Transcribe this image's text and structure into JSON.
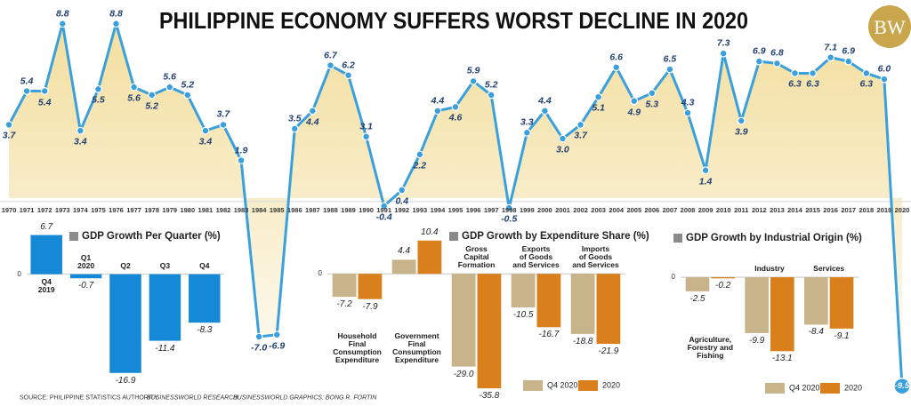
{
  "logo": "BW",
  "footer": [
    "SOURCE: PHILIPPINE STATISTICS AUTHORITY",
    "BUSINESSWORLD RESEARCH",
    "BUSINESSWORLD GRAPHICS: BONG R. FORTIN"
  ],
  "chart_data": [
    {
      "type": "line",
      "title": "PHILIPPINE ECONOMY SUFFERS WORST DECLINE IN 2020",
      "x": [
        1970,
        1971,
        1972,
        1973,
        1974,
        1975,
        1976,
        1977,
        1978,
        1979,
        1980,
        1981,
        1982,
        1983,
        1984,
        1985,
        1986,
        1987,
        1988,
        1989,
        1990,
        1991,
        1992,
        1993,
        1994,
        1995,
        1996,
        1997,
        1998,
        1999,
        2000,
        2001,
        2002,
        2003,
        2004,
        2005,
        2006,
        2007,
        2008,
        2009,
        2010,
        2011,
        2012,
        2013,
        2014,
        2015,
        2016,
        2017,
        2018,
        2019,
        2020
      ],
      "values": [
        3.7,
        5.4,
        5.4,
        8.8,
        3.4,
        5.5,
        8.8,
        5.6,
        5.2,
        5.6,
        5.2,
        3.4,
        3.7,
        1.9,
        -7.0,
        -6.9,
        3.5,
        4.4,
        6.7,
        6.2,
        3.1,
        -0.4,
        0.4,
        2.2,
        4.4,
        4.6,
        5.9,
        5.2,
        -0.5,
        3.3,
        4.4,
        3.0,
        3.7,
        5.1,
        6.6,
        4.9,
        5.3,
        6.5,
        4.3,
        1.4,
        7.3,
        3.9,
        6.9,
        6.8,
        6.3,
        6.3,
        7.1,
        6.9,
        6.3,
        6.0,
        -9.5
      ],
      "value_labels": [
        "3.7",
        "5.4",
        "5.4",
        "8.8",
        "3.4",
        "5.5",
        "8.8",
        "5.6",
        "5.2",
        "5.6",
        "5.2",
        "3.4",
        "3.7",
        "1.9",
        "-7.0",
        "-6.9",
        "3.5",
        "4.4",
        "6.7",
        "6.2",
        "3.1",
        "-0.4",
        "0.4",
        "2.2",
        "4.4",
        "4.6",
        "5.9",
        "5.2",
        "-0.5",
        "3.3",
        "4.4",
        "3.0",
        "3.7",
        "5.1",
        "6.6",
        "4.9",
        "5.3",
        "6.5",
        "4.3",
        "1.4",
        "7.3",
        "3.9",
        "6.9",
        "6.8",
        "6.3",
        "6.3",
        "7.1",
        "6.9",
        "6.3",
        "6.0",
        "-9.5"
      ],
      "color": "#3aa0dd",
      "area_color": "#f1d98e",
      "xlim": [
        1969.5,
        2020.5
      ],
      "xticks": [
        1970,
        1971,
        1972,
        1973,
        1974,
        1975,
        1976,
        1977,
        1978,
        1979,
        1980,
        1981,
        1982,
        1983,
        1984,
        1985,
        1986,
        1987,
        1988,
        1989,
        1990,
        1991,
        1992,
        1993,
        1994,
        1995,
        1996,
        1997,
        1998,
        1999,
        2000,
        2001,
        2002,
        2003,
        2004,
        2005,
        2006,
        2007,
        2008,
        2009,
        2010,
        2011,
        2012,
        2013,
        2014,
        2015,
        2016,
        2017,
        2018,
        2019,
        2020
      ],
      "ylim": [
        -10.5,
        10
      ]
    },
    {
      "type": "bar",
      "title": "GDP Growth Per Quarter (%)",
      "categories": [
        "Q4\n2019",
        "Q1\n2020",
        "Q2",
        "Q3",
        "Q4"
      ],
      "values": [
        6.7,
        -0.7,
        -16.9,
        -11.4,
        -8.3
      ],
      "color": "#1689d6",
      "ylim": [
        -18,
        8
      ],
      "yticks": [
        0
      ]
    },
    {
      "type": "grouped-bar",
      "title": "GDP Growth by Expenditure Share (%)",
      "categories": [
        "Household\nFinal\nConsumption\nExpenditure",
        "Government\nFinal\nConsumption\nExpenditure",
        "Gross\nCapital\nFormation",
        "Exports\nof Goods\nand Services",
        "Imports\nof Goods\nand Services"
      ],
      "series": [
        {
          "name": "Q4 2020",
          "color": "#c8b48a",
          "values": [
            -7.2,
            4.4,
            -29.0,
            -10.5,
            -18.8
          ],
          "value_labels": [
            "-7.2",
            "4.4",
            "-29.0",
            "-10.5",
            "-18.8"
          ]
        },
        {
          "name": "2020",
          "color": "#d9801c",
          "values": [
            -7.9,
            10.4,
            -35.8,
            -16.7,
            -21.9
          ]
        }
      ],
      "ylim": [
        -38,
        12
      ],
      "yticks": [
        0
      ]
    },
    {
      "type": "grouped-bar",
      "title": "GDP Growth by Industrial Origin (%)",
      "categories": [
        "Agriculture,\nForestry and\nFishing",
        "Industry",
        "Services"
      ],
      "series": [
        {
          "name": "Q4 2020",
          "color": "#c8b48a",
          "values": [
            -2.5,
            -9.9,
            -8.4
          ]
        },
        {
          "name": "2020",
          "color": "#d9801c",
          "values": [
            -0.2,
            -13.1,
            -9.1
          ]
        }
      ],
      "ylim": [
        -14,
        3
      ],
      "yticks": [
        0
      ]
    }
  ]
}
